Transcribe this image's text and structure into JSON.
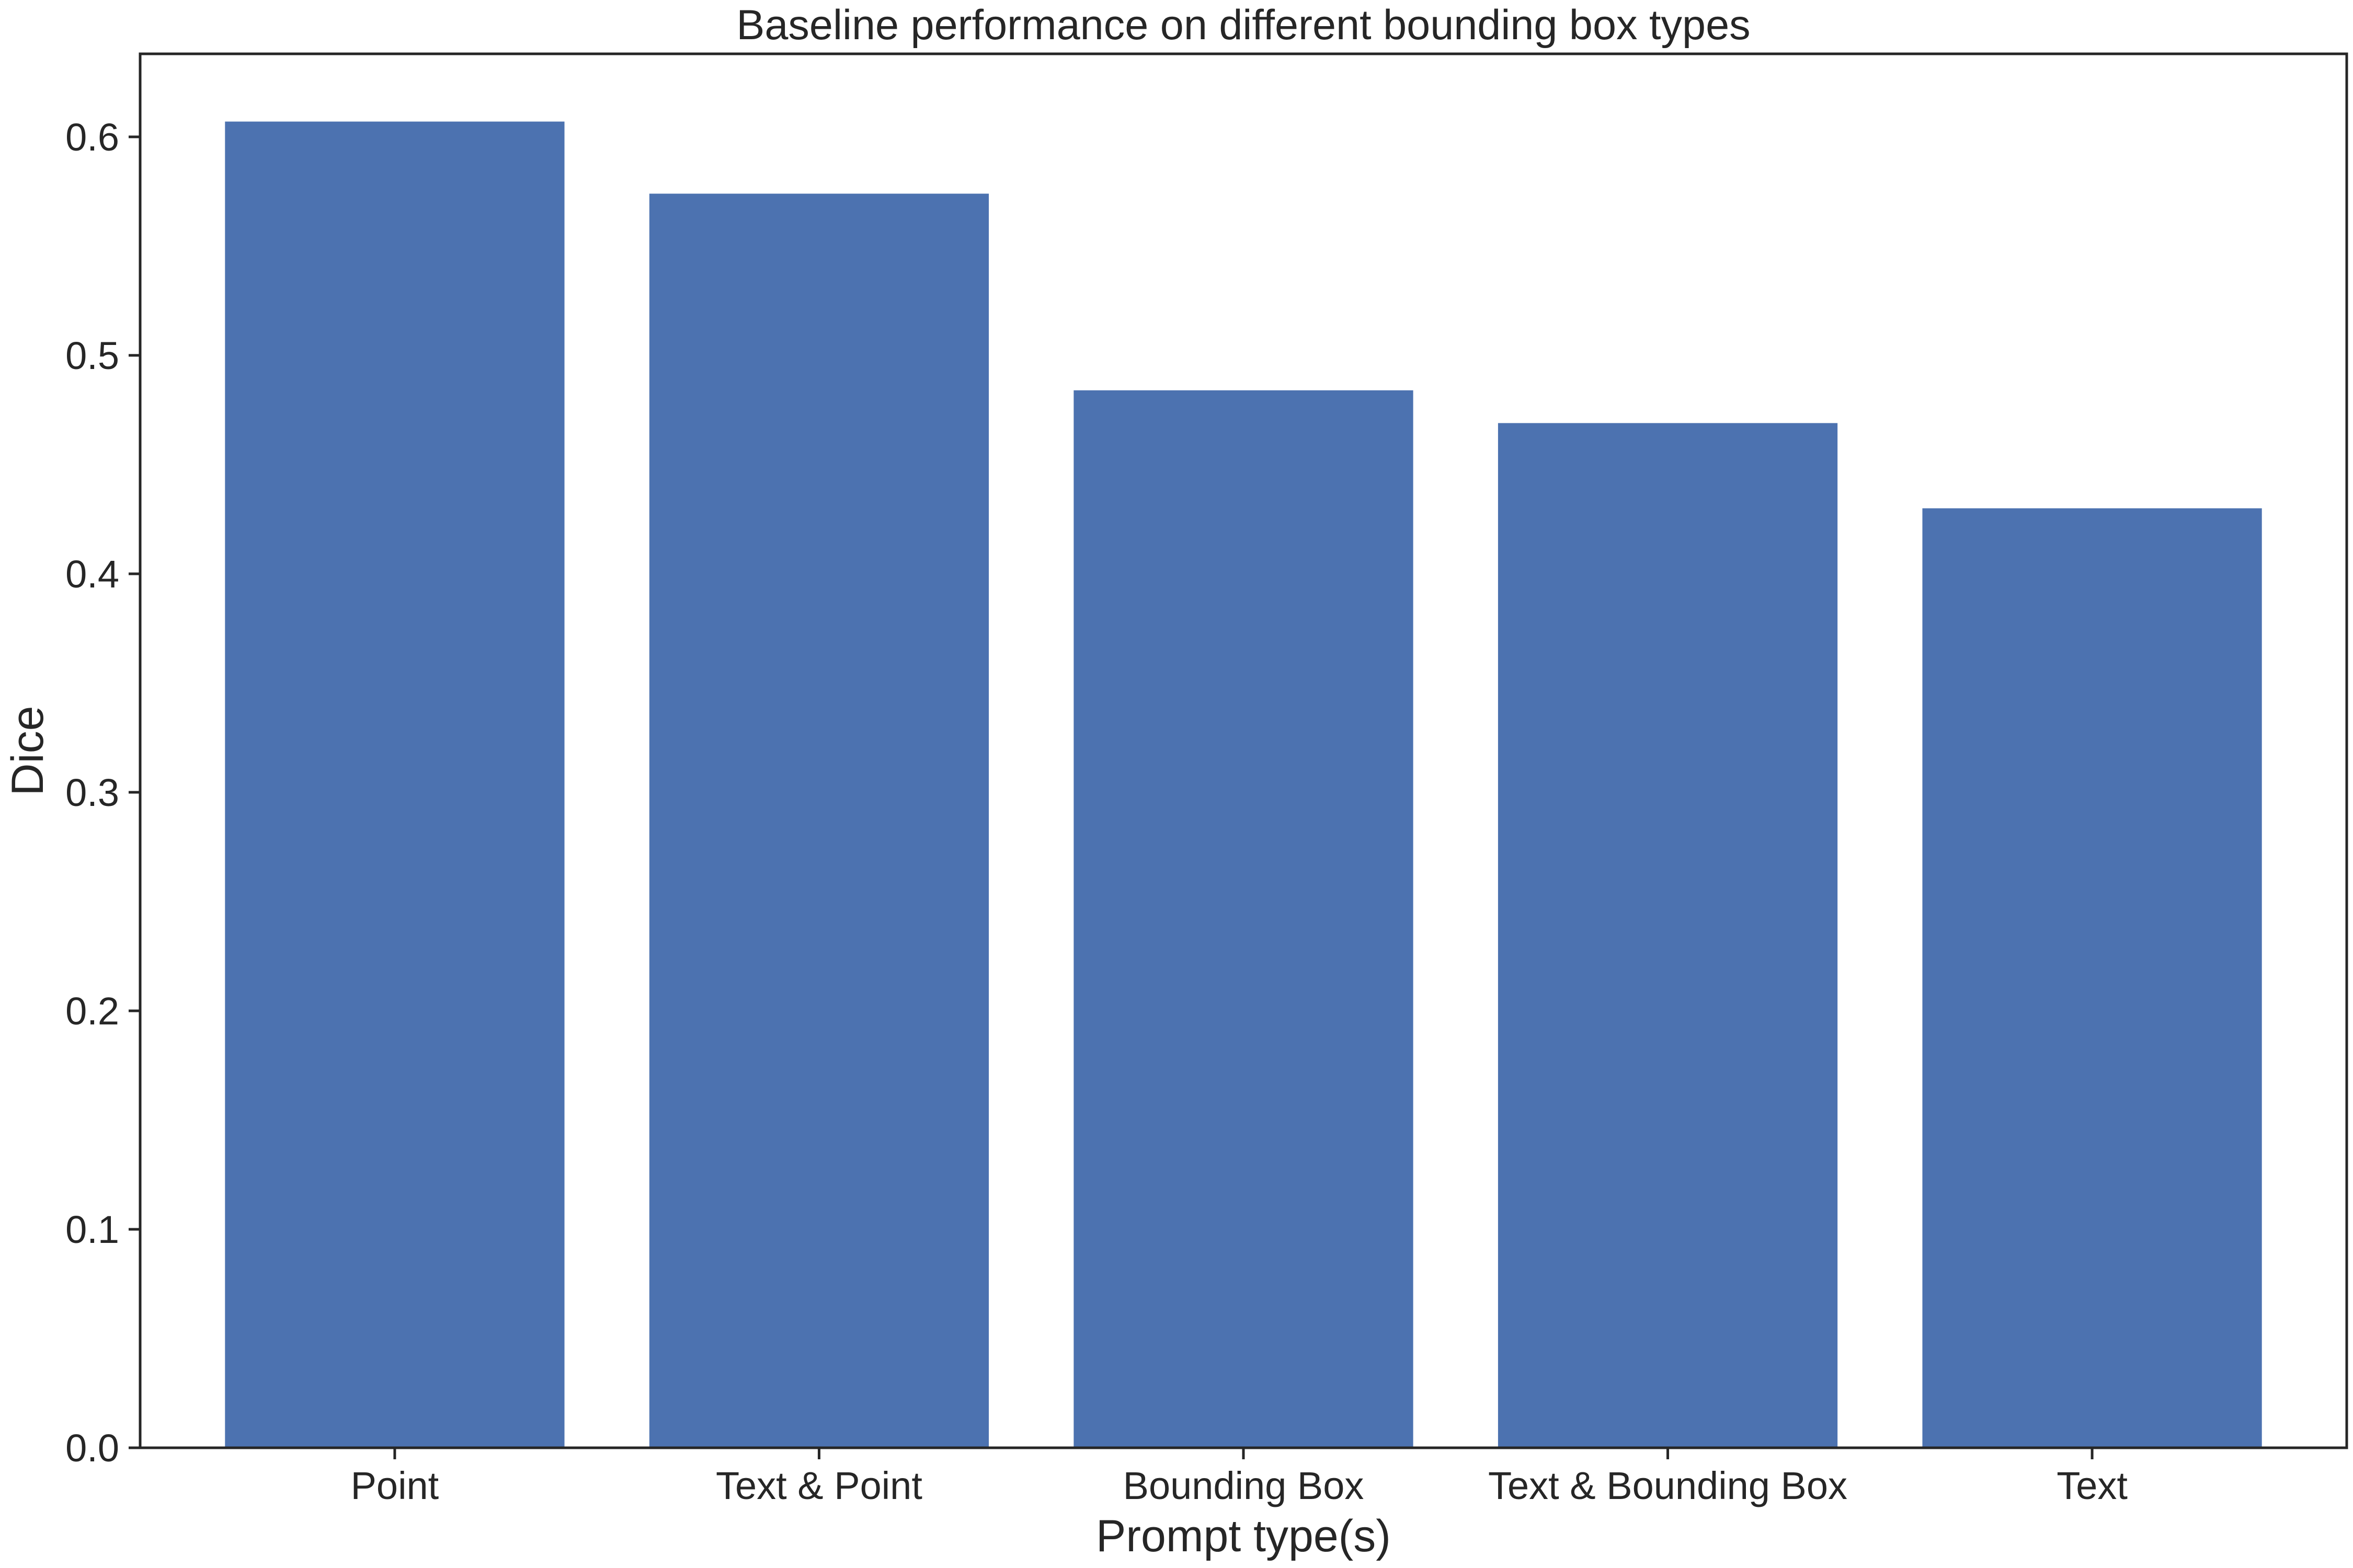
{
  "chart_data": {
    "type": "bar",
    "title": "Baseline performance on different bounding box types",
    "xlabel": "Prompt type(s)",
    "ylabel": "Dice",
    "categories": [
      "Point",
      "Text & Point",
      "Bounding Box",
      "Text & Bounding Box",
      "Text"
    ],
    "values": [
      0.607,
      0.574,
      0.484,
      0.469,
      0.43
    ],
    "ylim": [
      0,
      0.638
    ],
    "yticks": [
      0.0,
      0.1,
      0.2,
      0.3,
      0.4,
      0.5,
      0.6
    ],
    "ytick_labels": [
      "0.0",
      "0.1",
      "0.2",
      "0.3",
      "0.4",
      "0.5",
      "0.6"
    ],
    "bar_color": "#4c72b0",
    "grid": false,
    "legend": null
  }
}
